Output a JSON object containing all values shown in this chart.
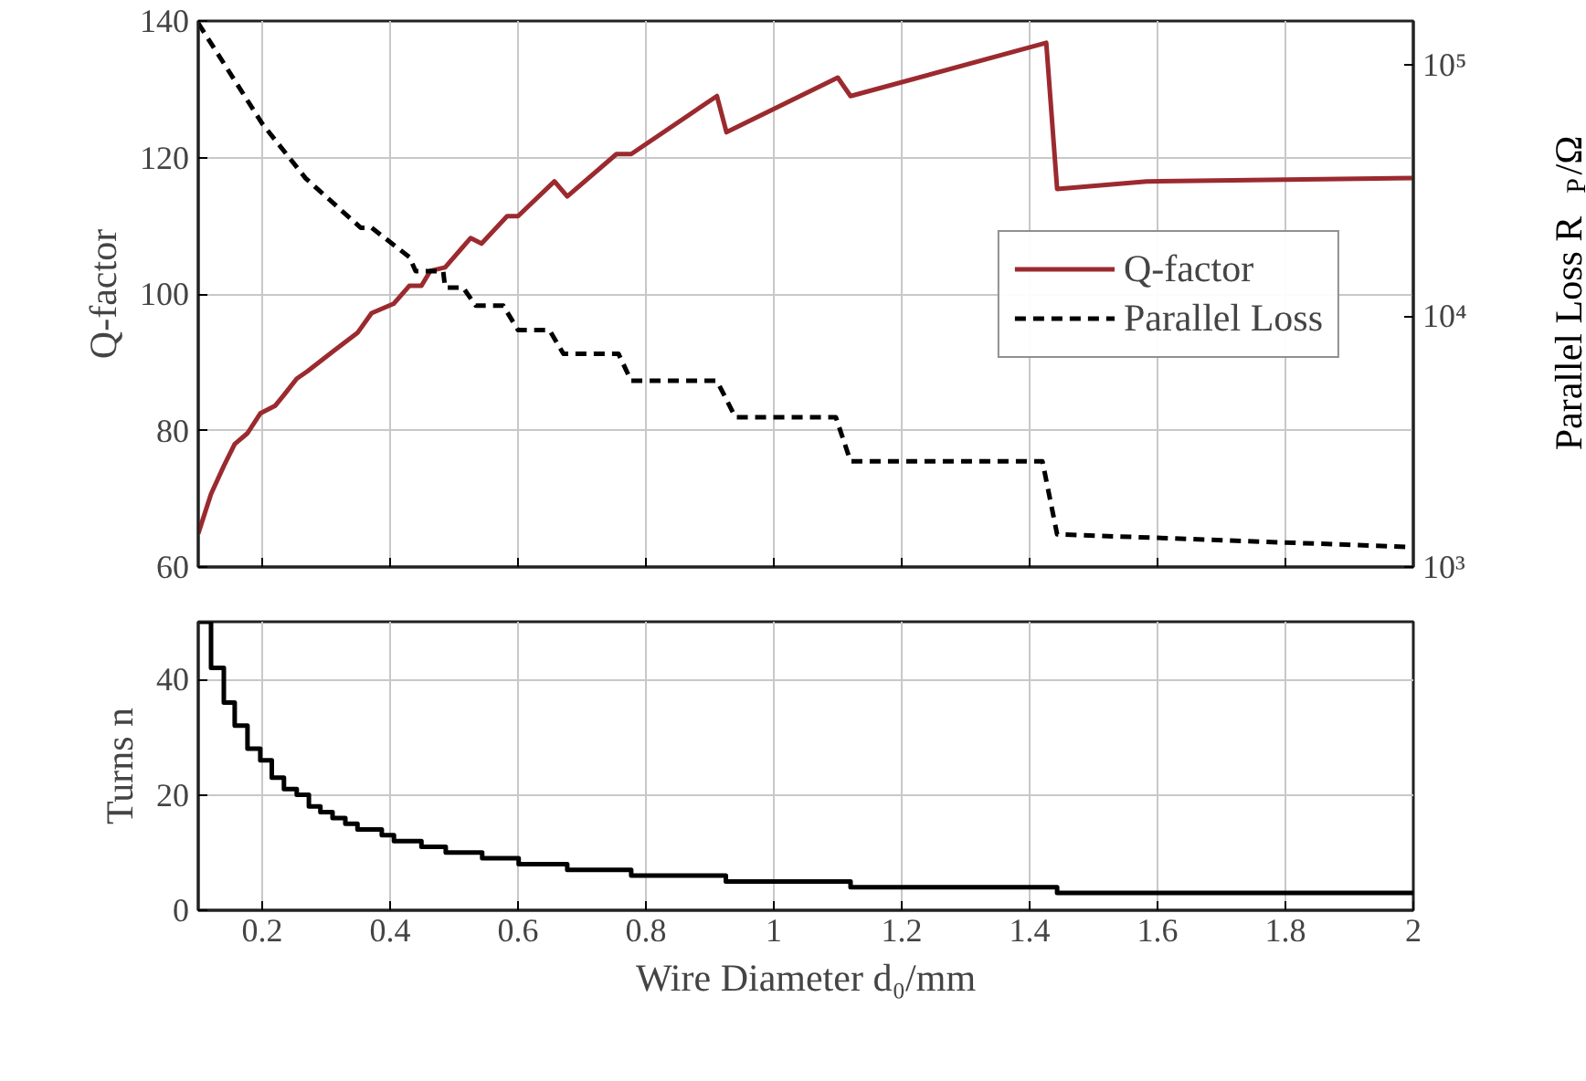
{
  "chart_data": [
    {
      "type": "line",
      "ylabel": "Q-factor",
      "y2label": "Parallel Loss R$_{P}$/Ω",
      "xlim": [
        0.1,
        2
      ],
      "xticks": [
        0.2,
        0.4,
        0.6,
        0.8,
        1,
        1.2,
        1.4,
        1.6,
        1.8,
        2
      ],
      "ylim": [
        60,
        140
      ],
      "yticks": [
        60,
        80,
        100,
        120,
        140
      ],
      "y2lim": [
        1000,
        150000
      ],
      "y2ticks": [
        {
          "value": 1000,
          "label": "10³"
        },
        {
          "value": 10000,
          "label": "10⁴"
        },
        {
          "value": 100000,
          "label": "10⁵"
        }
      ],
      "log": "y2",
      "grid": true,
      "legend": "right",
      "tick_labels": "y",
      "series": [
        {
          "name": "Q-factor",
          "color": "#9b2a2f",
          "line_style": "solid",
          "x": [
            0.1,
            0.12,
            0.14,
            0.157,
            0.177,
            0.197,
            0.22,
            0.234,
            0.254,
            0.271,
            0.311,
            0.349,
            0.371,
            0.406,
            0.43,
            0.449,
            0.463,
            0.486,
            0.526,
            0.543,
            0.583,
            0.6,
            0.657,
            0.677,
            0.754,
            0.777,
            0.911,
            0.926,
            1.1,
            1.12,
            1.426,
            1.443,
            1.583,
            2
          ],
          "values": [
            64.9,
            70.7,
            74.8,
            78,
            79.6,
            82.5,
            83.6,
            85.2,
            87.6,
            88.7,
            91.6,
            94.3,
            97.2,
            98.6,
            101.2,
            101.2,
            103.4,
            103.9,
            108.2,
            107.4,
            111.4,
            111.4,
            116.5,
            114.3,
            120.5,
            120.5,
            129,
            123.7,
            131.7,
            129,
            136.8,
            115.4,
            116.5,
            117
          ]
        },
        {
          "name": "Parallel Loss",
          "color": "#000000",
          "line_style": "dashed",
          "axis": "y2",
          "x": [
            0.1,
            0.2,
            0.268,
            0.354,
            0.371,
            0.43,
            0.44,
            0.483,
            0.486,
            0.514,
            0.534,
            0.577,
            0.6,
            0.649,
            0.671,
            0.757,
            0.777,
            0.911,
            0.94,
            1.097,
            1.12,
            1.42,
            1.443,
            2
          ],
          "values": [
            147000,
            58500,
            35400,
            22500,
            22500,
            17200,
            15100,
            15100,
            13000,
            13000,
            11000,
            11000,
            8800,
            8800,
            7080,
            7080,
            5520,
            5520,
            3950,
            3950,
            2640,
            2640,
            1350,
            1200
          ]
        }
      ]
    },
    {
      "type": "step",
      "xlabel": "Wire Diameter d₀/mm",
      "ylabel": "Turns n",
      "xlim": [
        0.1,
        2
      ],
      "xticks": [
        0.2,
        0.4,
        0.6,
        0.8,
        1,
        1.2,
        1.4,
        1.6,
        1.8,
        2
      ],
      "ylim": [
        0,
        50
      ],
      "yticks": [
        0,
        20,
        40
      ],
      "grid": true,
      "series": [
        {
          "color": "#000000",
          "x": [
            0.1,
            0.12,
            0.14,
            0.157,
            0.177,
            0.197,
            0.215,
            0.234,
            0.254,
            0.273,
            0.291,
            0.31,
            0.33,
            0.349,
            0.387,
            0.406,
            0.449,
            0.487,
            0.544,
            0.601,
            0.677,
            0.777,
            0.925,
            1.12,
            1.443,
            2
          ],
          "values": [
            50,
            42,
            36,
            32,
            28,
            26,
            23,
            21,
            20,
            18,
            17,
            16,
            15,
            14,
            13,
            12,
            11,
            10,
            9,
            8,
            7,
            6,
            5,
            4,
            3,
            3
          ]
        }
      ]
    }
  ]
}
